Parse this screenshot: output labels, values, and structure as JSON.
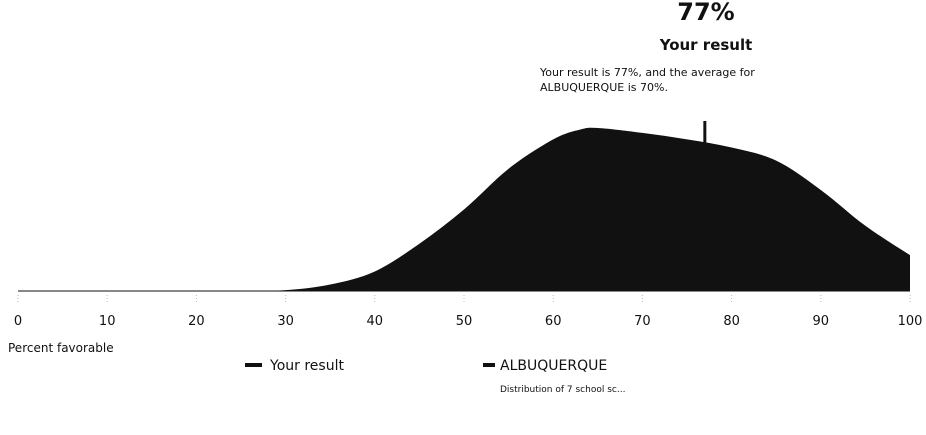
{
  "chart_data": {
    "type": "area",
    "x_label": "Percent favorable",
    "x": [
      25,
      30,
      35,
      40,
      45,
      50,
      55,
      60,
      63,
      65,
      70,
      75,
      80,
      85,
      90,
      95,
      100
    ],
    "series": [
      {
        "name": "ALBUQUERQUE",
        "color": "#111111",
        "values": [
          0,
          0.005,
          0.04,
          0.12,
          0.29,
          0.5,
          0.75,
          0.93,
          0.99,
          1.0,
          0.97,
          0.93,
          0.88,
          0.8,
          0.62,
          0.4,
          0.22
        ]
      }
    ],
    "series_note": "Distribution of 7 school sc...",
    "marker": {
      "name": "Your result",
      "value": 77,
      "label": "77%",
      "color": "#111111",
      "text_lines": [
        "Your result is 77%, and the average for",
        "ALBUQUERQUE is 70%."
      ]
    },
    "xlim": [
      0,
      100
    ],
    "xticks": [
      0,
      10,
      20,
      30,
      40,
      50,
      60,
      70,
      80,
      90,
      100
    ],
    "ylim": [
      0,
      1
    ]
  }
}
